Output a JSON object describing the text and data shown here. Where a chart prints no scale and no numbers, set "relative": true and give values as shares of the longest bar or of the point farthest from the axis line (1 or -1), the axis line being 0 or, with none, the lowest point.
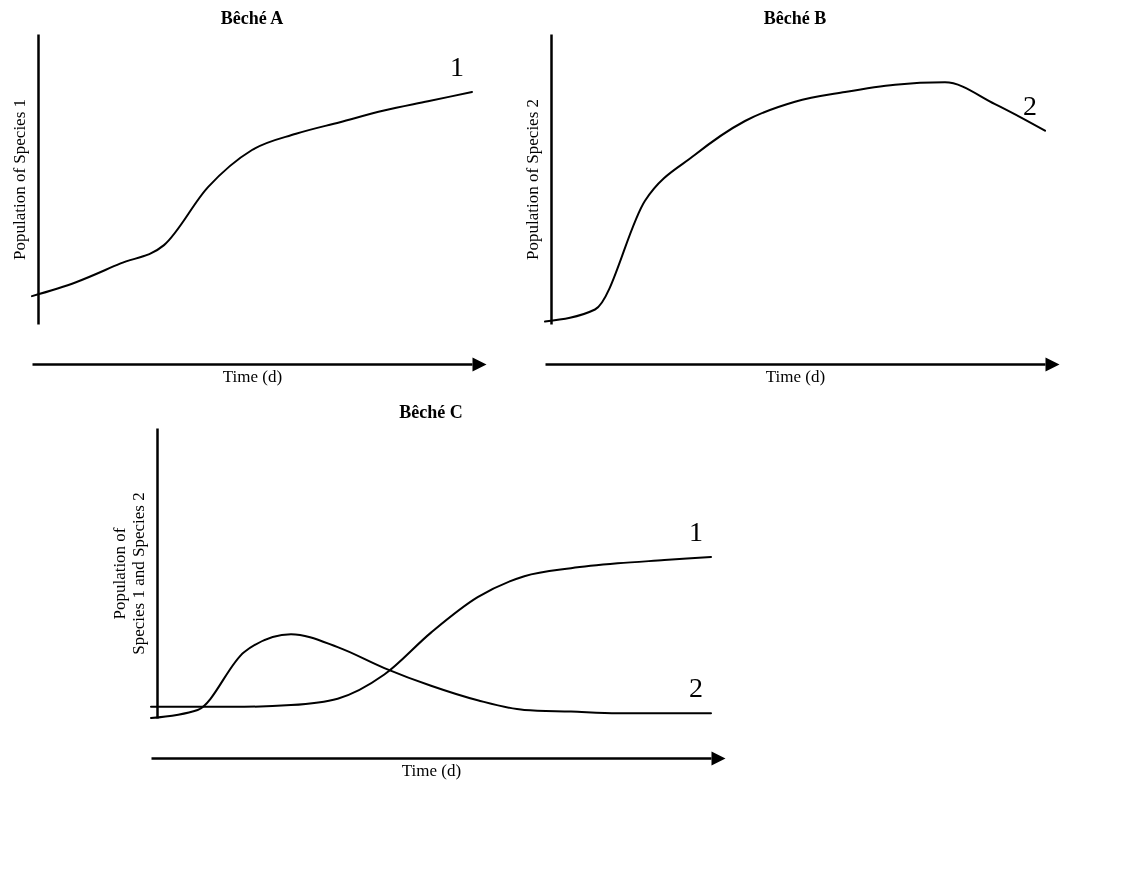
{
  "chart_data": [
    {
      "type": "line",
      "title": "Bêché A",
      "xlabel": "Time (d)",
      "ylabel": "Population of Species 1",
      "relative": true,
      "tick_labels": false,
      "categories": [
        null,
        null,
        null,
        null,
        null,
        null,
        null,
        null,
        null,
        null,
        null
      ],
      "series": [
        {
          "name": "1",
          "color": "#000000",
          "values": [
            0.12,
            0.18,
            0.26,
            0.34,
            0.59,
            0.75,
            0.82,
            0.87,
            0.92,
            0.96,
            1
          ]
        }
      ]
    },
    {
      "type": "line",
      "title": "Bêché B",
      "xlabel": "Time (d)",
      "ylabel": "Population of Species 2",
      "relative": true,
      "tick_labels": false,
      "categories": [
        null,
        null,
        null,
        null,
        null,
        null,
        null,
        null,
        null,
        null,
        null
      ],
      "series": [
        {
          "name": "2",
          "color": "#000000",
          "values": [
            0.01,
            0.06,
            0.51,
            0.7,
            0.84,
            0.92,
            0.96,
            0.99,
            1,
            0.91,
            0.8
          ]
        }
      ]
    },
    {
      "type": "line",
      "title": "Bêché C",
      "xlabel": "Time (d)",
      "ylabel": "Population of\nSpecies 1 and Species 2",
      "relative": true,
      "tick_labels": false,
      "categories": [
        null,
        null,
        null,
        null,
        null,
        null,
        null,
        null,
        null,
        null,
        null,
        null,
        null
      ],
      "series": [
        {
          "name": "1",
          "color": "#000000",
          "values": [
            0.07,
            0.07,
            0.07,
            0.08,
            0.12,
            0.27,
            0.53,
            0.75,
            0.88,
            0.93,
            0.96,
            0.98,
            1
          ]
        },
        {
          "name": "2",
          "color": "#000000",
          "values": [
            0,
            0.05,
            0.41,
            0.52,
            0.44,
            0.31,
            0.2,
            0.11,
            0.05,
            0.04,
            0.03,
            0.03,
            0.03
          ]
        }
      ]
    }
  ]
}
